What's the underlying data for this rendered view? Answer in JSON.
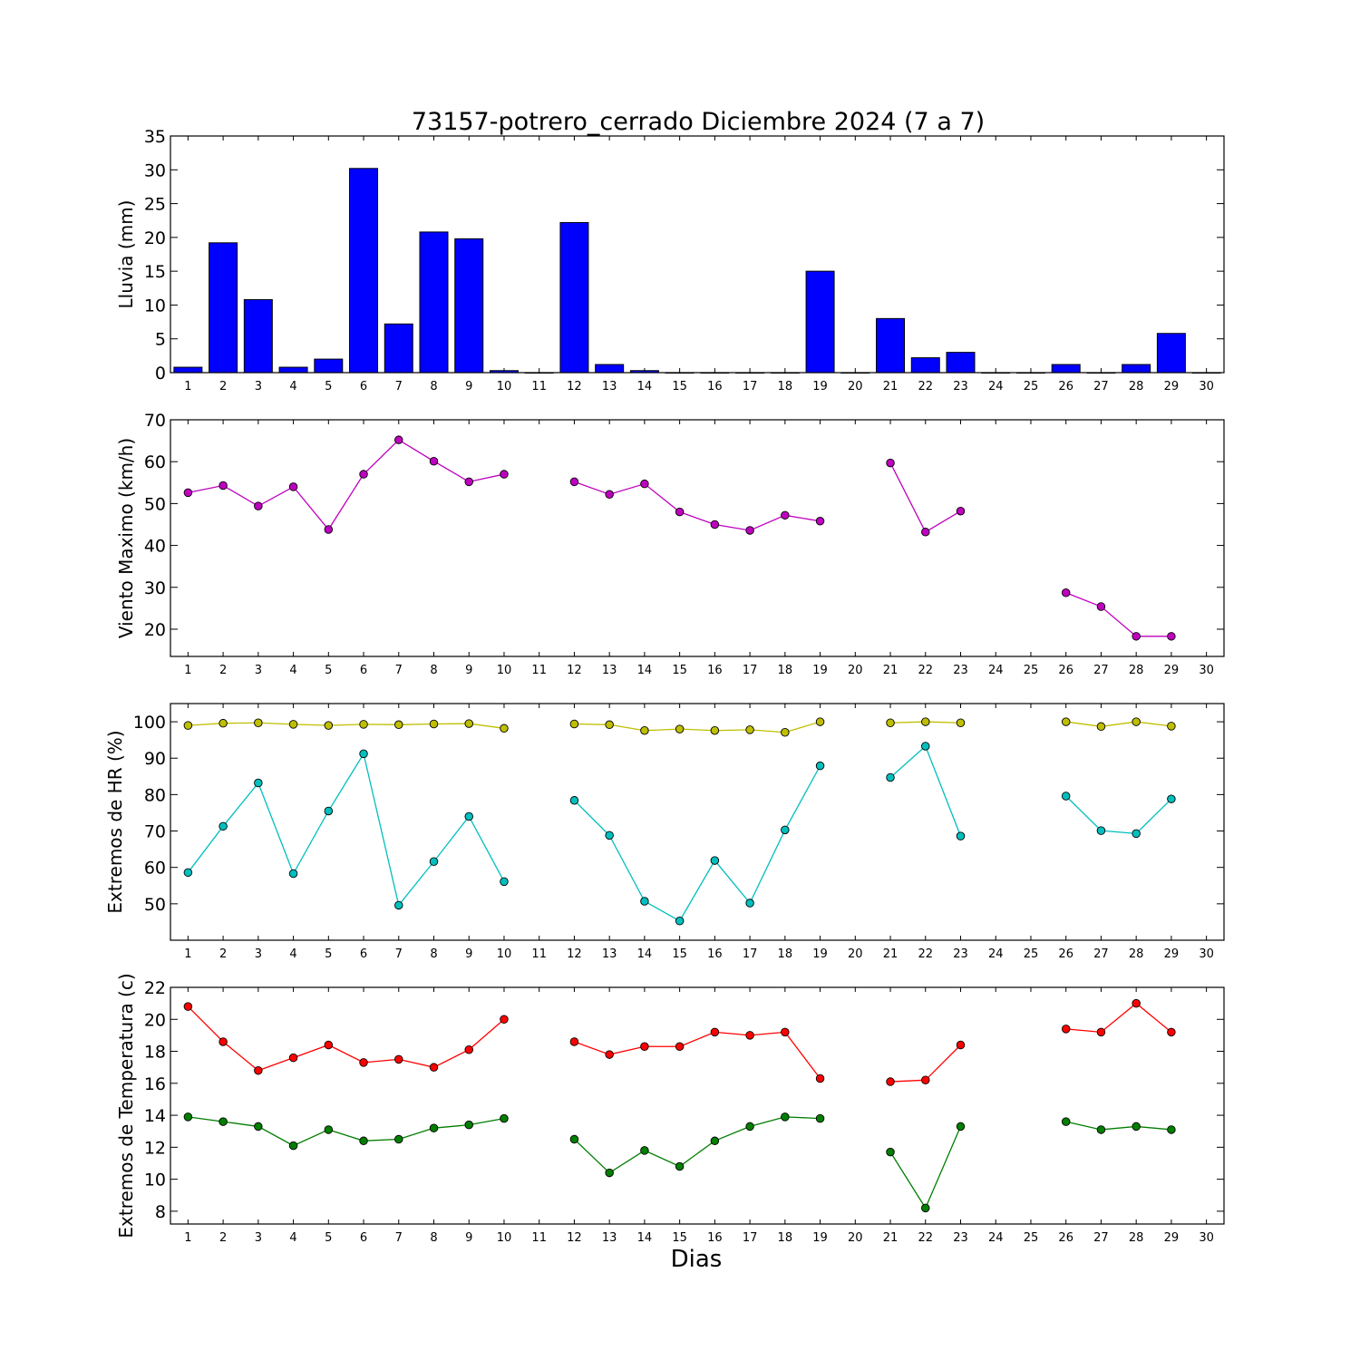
{
  "figure": {
    "title": "73157-potrero_cerrado Diciembre 2024  (7 a 7)",
    "xlabel": "Dias"
  },
  "chart_data": [
    {
      "type": "bar",
      "ylabel": "Lluvia (mm)",
      "ylim": [
        0,
        35
      ],
      "yticks": [
        0,
        5,
        10,
        15,
        20,
        25,
        30,
        35
      ],
      "xlim": [
        0.5,
        30.5
      ],
      "xticks": [
        1,
        2,
        3,
        4,
        5,
        6,
        7,
        8,
        9,
        10,
        11,
        12,
        13,
        14,
        15,
        16,
        17,
        18,
        19,
        20,
        21,
        22,
        23,
        24,
        25,
        26,
        27,
        28,
        29,
        30
      ],
      "grid": false,
      "series": [
        {
          "color": "#0000ff",
          "x": [
            1,
            2,
            3,
            4,
            5,
            6,
            7,
            8,
            9,
            10,
            11,
            12,
            13,
            14,
            15,
            16,
            17,
            18,
            19,
            20,
            21,
            22,
            23,
            24,
            25,
            26,
            27,
            28,
            29,
            30
          ],
          "values": [
            0.8,
            19.2,
            10.8,
            0.8,
            2.0,
            30.2,
            7.2,
            20.8,
            19.8,
            0.3,
            0,
            22.2,
            1.2,
            0.3,
            0,
            0,
            0,
            0,
            15.0,
            0,
            8.0,
            2.2,
            3.0,
            0,
            0,
            1.2,
            0,
            1.2,
            5.8,
            0
          ]
        }
      ]
    },
    {
      "type": "line",
      "ylabel": "Viento Maximo (km/h)",
      "ylim": [
        13.5,
        70
      ],
      "yticks": [
        20,
        30,
        40,
        50,
        60,
        70
      ],
      "xlim": [
        0.5,
        30.5
      ],
      "xticks": [
        1,
        2,
        3,
        4,
        5,
        6,
        7,
        8,
        9,
        10,
        11,
        12,
        13,
        14,
        15,
        16,
        17,
        18,
        19,
        20,
        21,
        22,
        23,
        24,
        25,
        26,
        27,
        28,
        29,
        30
      ],
      "grid": false,
      "series": [
        {
          "color": "#bf00bf",
          "x": [
            1,
            2,
            3,
            4,
            5,
            6,
            7,
            8,
            9,
            10,
            11,
            12,
            13,
            14,
            15,
            16,
            17,
            18,
            19,
            20,
            21,
            22,
            23,
            24,
            25,
            26,
            27,
            28,
            29,
            30
          ],
          "values": [
            52.6,
            54.3,
            49.4,
            54.0,
            43.8,
            57.0,
            65.2,
            60.1,
            55.2,
            57.0,
            null,
            55.2,
            52.2,
            54.7,
            48.0,
            45.0,
            43.6,
            47.2,
            45.8,
            null,
            59.7,
            43.2,
            48.2,
            null,
            null,
            28.7,
            25.4,
            18.3,
            18.3,
            null
          ]
        }
      ]
    },
    {
      "type": "line",
      "ylabel": "Extremos de HR (%)",
      "ylim": [
        40,
        105
      ],
      "yticks": [
        50,
        60,
        70,
        80,
        90,
        100
      ],
      "xlim": [
        0.5,
        30.5
      ],
      "xticks": [
        1,
        2,
        3,
        4,
        5,
        6,
        7,
        8,
        9,
        10,
        11,
        12,
        13,
        14,
        15,
        16,
        17,
        18,
        19,
        20,
        21,
        22,
        23,
        24,
        25,
        26,
        27,
        28,
        29,
        30
      ],
      "grid": false,
      "series": [
        {
          "color": "#bfbf00",
          "x": [
            1,
            2,
            3,
            4,
            5,
            6,
            7,
            8,
            9,
            10,
            11,
            12,
            13,
            14,
            15,
            16,
            17,
            18,
            19,
            20,
            21,
            22,
            23,
            24,
            25,
            26,
            27,
            28,
            29,
            30
          ],
          "values": [
            99.0,
            99.6,
            99.7,
            99.3,
            99.0,
            99.3,
            99.2,
            99.4,
            99.5,
            98.2,
            null,
            99.4,
            99.2,
            97.6,
            98.0,
            97.6,
            97.8,
            97.1,
            100.0,
            null,
            99.7,
            100.0,
            99.7,
            null,
            null,
            100.0,
            98.7,
            100.0,
            98.8,
            null
          ]
        },
        {
          "color": "#00bfbf",
          "x": [
            1,
            2,
            3,
            4,
            5,
            6,
            7,
            8,
            9,
            10,
            11,
            12,
            13,
            14,
            15,
            16,
            17,
            18,
            19,
            20,
            21,
            22,
            23,
            24,
            25,
            26,
            27,
            28,
            29,
            30
          ],
          "values": [
            58.6,
            71.3,
            83.2,
            58.3,
            75.5,
            91.2,
            49.6,
            61.6,
            74.0,
            56.1,
            null,
            78.4,
            68.8,
            50.7,
            45.3,
            61.9,
            50.2,
            70.3,
            87.9,
            null,
            84.7,
            93.3,
            68.6,
            null,
            null,
            79.6,
            70.1,
            69.3,
            78.8,
            null
          ]
        }
      ]
    },
    {
      "type": "line",
      "ylabel": "Extremos de Temperatura (c)",
      "ylim": [
        7.2,
        22
      ],
      "yticks": [
        8,
        10,
        12,
        14,
        16,
        18,
        20,
        22
      ],
      "xlim": [
        0.5,
        30.5
      ],
      "xticks": [
        1,
        2,
        3,
        4,
        5,
        6,
        7,
        8,
        9,
        10,
        11,
        12,
        13,
        14,
        15,
        16,
        17,
        18,
        19,
        20,
        21,
        22,
        23,
        24,
        25,
        26,
        27,
        28,
        29,
        30
      ],
      "grid": false,
      "series": [
        {
          "color": "#ff0000",
          "x": [
            1,
            2,
            3,
            4,
            5,
            6,
            7,
            8,
            9,
            10,
            11,
            12,
            13,
            14,
            15,
            16,
            17,
            18,
            19,
            20,
            21,
            22,
            23,
            24,
            25,
            26,
            27,
            28,
            29,
            30
          ],
          "values": [
            20.8,
            18.6,
            16.8,
            17.6,
            18.4,
            17.3,
            17.5,
            17.0,
            18.1,
            20.0,
            null,
            18.6,
            17.8,
            18.3,
            18.3,
            19.2,
            19.0,
            19.2,
            16.3,
            null,
            16.1,
            16.2,
            18.4,
            null,
            null,
            19.4,
            19.2,
            21.0,
            19.2,
            null
          ]
        },
        {
          "color": "#007f00",
          "x": [
            1,
            2,
            3,
            4,
            5,
            6,
            7,
            8,
            9,
            10,
            11,
            12,
            13,
            14,
            15,
            16,
            17,
            18,
            19,
            20,
            21,
            22,
            23,
            24,
            25,
            26,
            27,
            28,
            29,
            30
          ],
          "values": [
            13.9,
            13.6,
            13.3,
            12.1,
            13.1,
            12.4,
            12.5,
            13.2,
            13.4,
            13.8,
            null,
            12.5,
            10.4,
            11.8,
            10.8,
            12.4,
            13.3,
            13.9,
            13.8,
            null,
            11.7,
            8.2,
            13.3,
            null,
            null,
            13.6,
            13.1,
            13.3,
            13.1,
            null
          ]
        }
      ]
    }
  ]
}
